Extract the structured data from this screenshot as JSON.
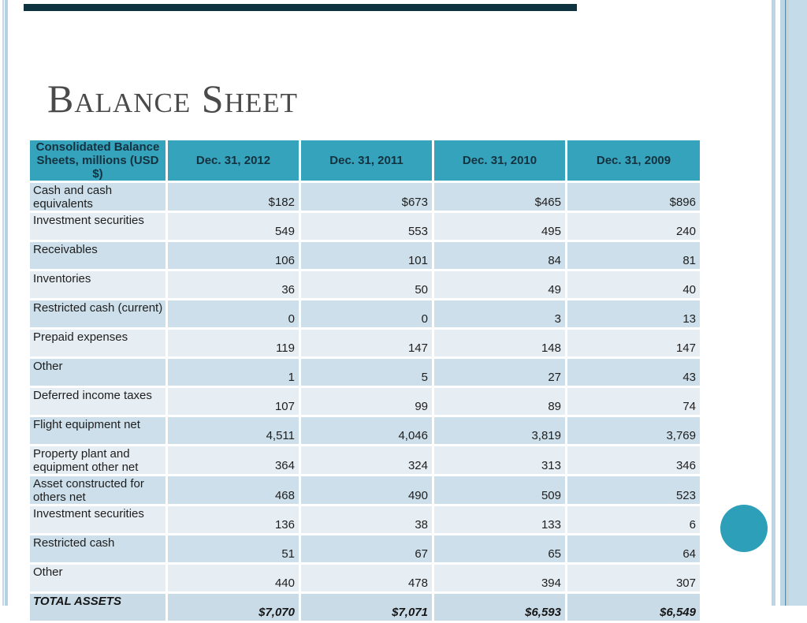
{
  "slide": {
    "title": "Balance Sheet"
  },
  "theme": {
    "header_teal": "#35a3bc",
    "row_band_dark": "#cddfea",
    "row_band_light": "#e6edf3",
    "total_row_bg": "#c9dbe7",
    "accent_circle": "#2d9fb8",
    "edge_stripe": "#bcd6e6",
    "top_bar": "#0e3340",
    "title_color": "#4a4a4a"
  },
  "table": {
    "columns": [
      "Consolidated Balance Sheets, millions (USD $)",
      "Dec. 31, 2012",
      "Dec. 31, 2011",
      "Dec. 31, 2010",
      "Dec. 31, 2009"
    ],
    "rows": [
      {
        "label": "Cash and cash equivalents",
        "values": [
          "$182",
          "$673",
          "$465",
          "$896"
        ]
      },
      {
        "label": "Investment securities",
        "values": [
          "549",
          "553",
          "495",
          "240"
        ]
      },
      {
        "label": "Receivables",
        "values": [
          "106",
          "101",
          "84",
          "81"
        ]
      },
      {
        "label": "Inventories",
        "values": [
          "36",
          "50",
          "49",
          "40"
        ]
      },
      {
        "label": "Restricted cash (current)",
        "values": [
          "0",
          "0",
          "3",
          "13"
        ]
      },
      {
        "label": "Prepaid expenses",
        "values": [
          "119",
          "147",
          "148",
          "147"
        ]
      },
      {
        "label": "Other",
        "values": [
          "1",
          "5",
          "27",
          "43"
        ]
      },
      {
        "label": "Deferred income taxes",
        "values": [
          "107",
          "99",
          "89",
          "74"
        ]
      },
      {
        "label": "Flight equipment net",
        "values": [
          "4,511",
          "4,046",
          "3,819",
          "3,769"
        ]
      },
      {
        "label": "Property plant and equipment other net",
        "values": [
          "364",
          "324",
          "313",
          "346"
        ]
      },
      {
        "label": "Asset constructed for others net",
        "values": [
          "468",
          "490",
          "509",
          "523"
        ]
      },
      {
        "label": "Investment securities",
        "values": [
          "136",
          "38",
          "133",
          "6"
        ]
      },
      {
        "label": "Restricted cash",
        "values": [
          "51",
          "67",
          "65",
          "64"
        ]
      },
      {
        "label": "Other",
        "values": [
          "440",
          "478",
          "394",
          "307"
        ]
      }
    ],
    "total_row": {
      "label": "TOTAL ASSETS",
      "values": [
        "$7,070",
        "$7,071",
        "$6,593",
        "$6,549"
      ]
    }
  }
}
